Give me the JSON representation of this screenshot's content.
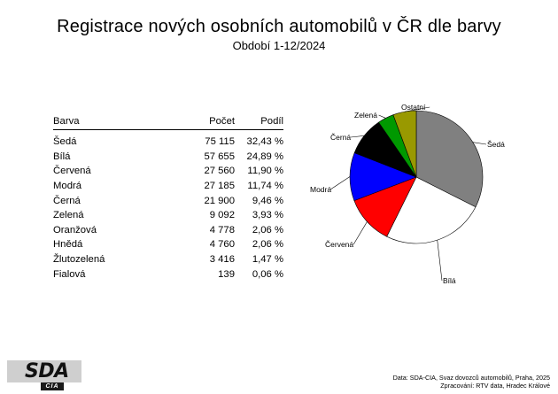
{
  "title": "Registrace nových osobních automobilů v ČR dle barvy",
  "subtitle": "Období 1-12/2024",
  "table": {
    "headers": [
      "Barva",
      "Počet",
      "Podíl"
    ],
    "rows": [
      {
        "barva": "Šedá",
        "pocet": "75 115",
        "podil": "32,43 %"
      },
      {
        "barva": "Bílá",
        "pocet": "57 655",
        "podil": "24,89 %"
      },
      {
        "barva": "Červená",
        "pocet": "27 560",
        "podil": "11,90 %"
      },
      {
        "barva": "Modrá",
        "pocet": "27 185",
        "podil": "11,74 %"
      },
      {
        "barva": "Černá",
        "pocet": "21 900",
        "podil": "9,46 %"
      },
      {
        "barva": "Zelená",
        "pocet": "9 092",
        "podil": "3,93 %"
      },
      {
        "barva": "Oranžová",
        "pocet": "4 778",
        "podil": "2,06 %"
      },
      {
        "barva": "Hnědá",
        "pocet": "4 760",
        "podil": "2,06 %"
      },
      {
        "barva": "Žlutozelená",
        "pocet": "3 416",
        "podil": "1,47 %"
      },
      {
        "barva": "Fialová",
        "pocet": "139",
        "podil": "0,06 %"
      }
    ]
  },
  "chart_data": {
    "type": "pie",
    "slices": [
      {
        "label": "Šedá",
        "value": 75115,
        "color": "#808080"
      },
      {
        "label": "Bílá",
        "value": 57655,
        "color": "#ffffff"
      },
      {
        "label": "Červená",
        "value": 27560,
        "color": "#ff0000"
      },
      {
        "label": "Modrá",
        "value": 27185,
        "color": "#0000ff"
      },
      {
        "label": "Černá",
        "value": 21900,
        "color": "#000000"
      },
      {
        "label": "Zelená",
        "value": 9092,
        "color": "#009900"
      },
      {
        "label": "Ostatní",
        "value": 13093,
        "color": "#999900"
      }
    ]
  },
  "source": {
    "line1": "Data: SDA-CIA, Svaz dovozců automobilů, Praha, 2025",
    "line2": "Zpracování: RTV data, Hradec Králové"
  },
  "logo": {
    "word": "SDA",
    "sub": "CIA"
  }
}
